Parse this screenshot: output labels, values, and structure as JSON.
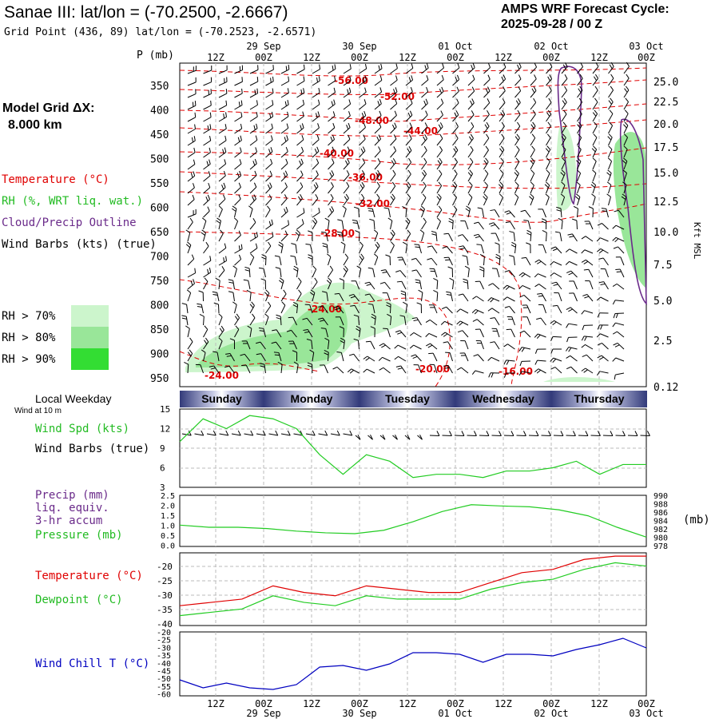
{
  "header": {
    "title": "Sanae III:  lat/lon = (-70.2500, -2.6667)",
    "grid_point": "Grid Point (436, 89) lat/lon = (-70.2523, -2.6571)",
    "cycle_line1": "AMPS WRF Forecast Cycle:",
    "cycle_line2": "2025-09-28 / 00  Z"
  },
  "left_labels": {
    "p_unit": "P (mb)",
    "model_grid": "Model Grid ΔX:",
    "model_grid_value": "8.000 km",
    "temperature": "Temperature (°C)",
    "rh": "RH (%, WRT liq. wat.)",
    "cloud": "Cloud/Precip Outline",
    "wind_barbs": "Wind Barbs (kts) (true)",
    "rh70": "RH > 70%",
    "rh80": "RH > 80%",
    "rh90": "RH > 90%",
    "local_weekday": "Local Weekday",
    "wind_at": "Wind at 10 m",
    "wind_spd": "Wind Spd (kts)",
    "wind_barbs2": "Wind Barbs (true)",
    "precip1": "Precip (mm)",
    "precip2": "liq. equiv.",
    "precip3": "3-hr accum",
    "pressure": "Pressure (mb)",
    "temp2": "Temperature (°C)",
    "dewpoint": "Dewpoint (°C)",
    "windchill": "Wind Chill T (°C)",
    "kft": "Kft MSL",
    "mb_unit": "(mb)"
  },
  "colors": {
    "temperature": "#e00000",
    "rh": "#22cc22",
    "cloud": "#6a2a8a",
    "windchill": "#0000c0",
    "rh70": "#ccf5cc",
    "rh80": "#99e699",
    "rh90": "#33dd33"
  },
  "time_axis": {
    "hour_labels": [
      "12Z",
      "00Z",
      "12Z",
      "00Z",
      "12Z",
      "00Z",
      "12Z",
      "00Z",
      "12Z",
      "00Z"
    ],
    "date_labels": [
      "29 Sep",
      "30 Sep",
      "01 Oct",
      "02 Oct",
      "03 Oct"
    ],
    "weekdays": [
      "Sunday",
      "Monday",
      "Tuesday",
      "Wednesday",
      "Thursday"
    ]
  },
  "chart_data": [
    {
      "type": "contour",
      "title": "Vertical cross-section",
      "pressure_ticks": [
        "350",
        "400",
        "450",
        "500",
        "550",
        "600",
        "650",
        "700",
        "750",
        "800",
        "850",
        "900",
        "950"
      ],
      "height_ticks": [
        "25.0",
        "22.5",
        "20.0",
        "17.5",
        "15.0",
        "12.5",
        "10.0",
        "7.5",
        "5.0",
        "2.5",
        "0.12"
      ],
      "temperature_contour_labels": [
        "-56.00",
        "-52.00",
        "-48.00",
        "-44.00",
        "-40.00",
        "-36.00",
        "-32.00",
        "-28.00",
        "-24.00",
        "-24.00",
        "-20.00",
        "-16.00"
      ]
    },
    {
      "type": "line",
      "title": "Wind Spd (kts)",
      "y_ticks": [
        "15",
        "12",
        "9",
        "6",
        "3"
      ],
      "ylim": [
        3,
        15
      ],
      "x_hours": [
        0,
        6,
        12,
        18,
        24,
        30,
        36,
        42,
        48,
        54,
        60,
        66,
        72,
        78,
        84,
        90,
        96,
        102,
        108,
        114,
        120
      ],
      "values": [
        10,
        13.5,
        12,
        14,
        13.5,
        12,
        8,
        5,
        8,
        7,
        4.5,
        5,
        5,
        4.5,
        5.5,
        5.5,
        6,
        7,
        5,
        6.5,
        6.5
      ]
    },
    {
      "type": "line",
      "title": "Precip / Pressure",
      "precip_ticks": [
        "2.5",
        "2.0",
        "1.5",
        "1.0",
        "0.5",
        "0.0"
      ],
      "pressure_ticks": [
        "990",
        "988",
        "986",
        "984",
        "982",
        "980",
        "978"
      ],
      "ylim_pressure": [
        978,
        990
      ],
      "pressure_values": [
        983.0,
        982.5,
        982.5,
        982.2,
        981.6,
        981.2,
        981.0,
        981.8,
        983.8,
        986.2,
        987.8,
        987.5,
        987.3,
        986.6,
        985.2,
        982.5,
        980.2
      ]
    },
    {
      "type": "line",
      "title": "Temperature / Dewpoint",
      "y_ticks": [
        "-20",
        "-25",
        "-30",
        "-35",
        "-40"
      ],
      "ylim": [
        -40,
        -18
      ],
      "temperature": [
        -34,
        -33,
        -32,
        -28,
        -30,
        -31,
        -28,
        -29,
        -30,
        -30,
        -27,
        -24,
        -23,
        -20,
        -19,
        -19
      ],
      "dewpoint": [
        -37,
        -36,
        -35,
        -31,
        -33,
        -34,
        -31,
        -32,
        -32,
        -32,
        -29,
        -27,
        -26,
        -23,
        -21,
        -22
      ]
    },
    {
      "type": "line",
      "title": "Wind Chill T (°C)",
      "y_ticks": [
        "-20",
        "-25",
        "-30",
        "-35",
        "-40",
        "-45",
        "-50",
        "-55",
        "-60"
      ],
      "ylim": [
        -60,
        -20
      ],
      "values": [
        -50,
        -55,
        -52,
        -55,
        -56,
        -53,
        -42,
        -41,
        -44,
        -40,
        -33,
        -33,
        -34,
        -39,
        -34,
        -34,
        -35,
        -31,
        -28,
        -24,
        -30
      ]
    }
  ]
}
